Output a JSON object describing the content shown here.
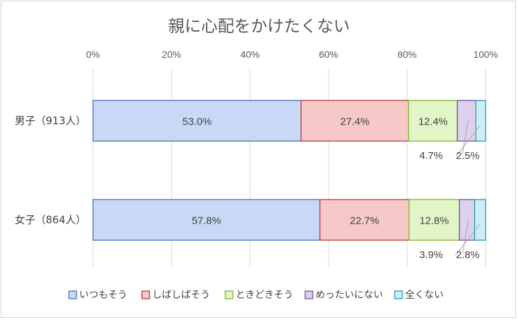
{
  "chart_data": {
    "type": "bar",
    "orientation": "horizontal",
    "stacked": true,
    "title": "親に心配をかけたくない",
    "categories": [
      "男子（913人）",
      "女子（864人）"
    ],
    "series": [
      {
        "name": "いつもそう",
        "values": [
          53.0,
          57.8
        ],
        "color": "#c9d9f5",
        "border": "#5a7fc2"
      },
      {
        "name": "しばしばそう",
        "values": [
          27.4,
          22.7
        ],
        "color": "#f7c8c8",
        "border": "#c0504d"
      },
      {
        "name": "ときどきそう",
        "values": [
          12.4,
          12.8
        ],
        "color": "#e2f5c6",
        "border": "#8fbf3f"
      },
      {
        "name": "めったいにない",
        "values": [
          4.7,
          3.9
        ],
        "color": "#ddd2ee",
        "border": "#7b62a8"
      },
      {
        "name": "全くない",
        "values": [
          2.5,
          2.8
        ],
        "color": "#cdeef6",
        "border": "#3fa3c2"
      }
    ],
    "data_labels": [
      [
        "53.0%",
        "27.4%",
        "12.4%",
        "4.7%",
        "2.5%"
      ],
      [
        "57.8%",
        "22.7%",
        "12.8%",
        "3.9%",
        "2.8%"
      ]
    ],
    "x_ticks": [
      "0%",
      "20%",
      "40%",
      "60%",
      "80%",
      "100%"
    ],
    "xlim": [
      0,
      100
    ],
    "grid": true,
    "legend_position": "bottom"
  }
}
